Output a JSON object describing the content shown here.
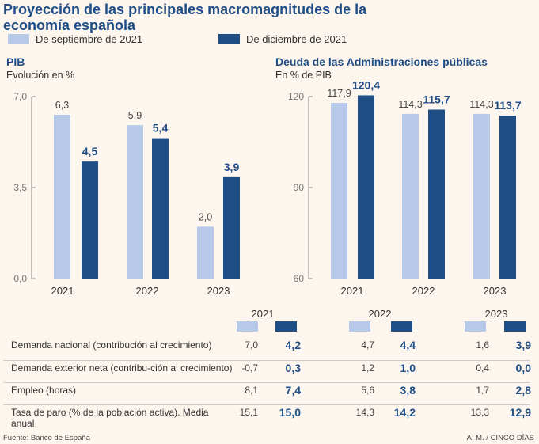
{
  "title": "Proyección de las principales macromagnitudes de la economía española",
  "legend": [
    "De septiembre de 2021",
    "De diciembre de 2021"
  ],
  "colors": {
    "sept": "#b7c9e8",
    "dic": "#1f4e87",
    "title": "#1f4e87"
  },
  "chart_data": [
    {
      "type": "bar",
      "title": "PIB",
      "subtitle": "Evolución en %",
      "categories": [
        "2021",
        "2022",
        "2023"
      ],
      "ylim": [
        0,
        7
      ],
      "yticks": [
        "0,0",
        "3,5",
        "7,0"
      ],
      "series": [
        {
          "name": "De septiembre de 2021",
          "values": [
            6.3,
            5.9,
            2.0
          ],
          "labels": [
            "6,3",
            "5,9",
            "2,0"
          ]
        },
        {
          "name": "De diciembre de 2021",
          "values": [
            4.5,
            5.4,
            3.9
          ],
          "labels": [
            "4,5",
            "5,4",
            "3,9"
          ]
        }
      ]
    },
    {
      "type": "bar",
      "title": "Deuda de las Administraciones públicas",
      "subtitle": "En % de PIB",
      "categories": [
        "2021",
        "2022",
        "2023"
      ],
      "ylim": [
        60,
        120
      ],
      "yticks": [
        "60",
        "90",
        "120"
      ],
      "series": [
        {
          "name": "De septiembre de 2021",
          "values": [
            117.9,
            114.3,
            114.3
          ],
          "labels": [
            "117,9",
            "114,3",
            "114,3"
          ]
        },
        {
          "name": "De diciembre de 2021",
          "values": [
            120.4,
            115.7,
            113.7
          ],
          "labels": [
            "120,4",
            "115,7",
            "113,7"
          ]
        }
      ]
    }
  ],
  "table": {
    "years": [
      "2021",
      "2022",
      "2023"
    ],
    "rows": [
      {
        "label": "Demanda nacional (contribución al crecimiento)",
        "values": [
          "7,0",
          "4,2",
          "4,7",
          "4,4",
          "1,6",
          "3,9"
        ]
      },
      {
        "label": "Demanda exterior neta (contribu-ción al crecimiento)",
        "values": [
          "-0,7",
          "0,3",
          "1,2",
          "1,0",
          "0,4",
          "0,0"
        ]
      },
      {
        "label": "Empleo (horas)",
        "values": [
          "8,1",
          "7,4",
          "5,6",
          "3,8",
          "1,7",
          "2,8"
        ]
      },
      {
        "label": "Tasa de paro (% de la población activa). Media anual",
        "values": [
          "15,1",
          "15,0",
          "14,3",
          "14,2",
          "13,3",
          "12,9"
        ]
      }
    ]
  },
  "source": "Fuente: Banco de España",
  "credit": "A. M. / CINCO DÍAS"
}
